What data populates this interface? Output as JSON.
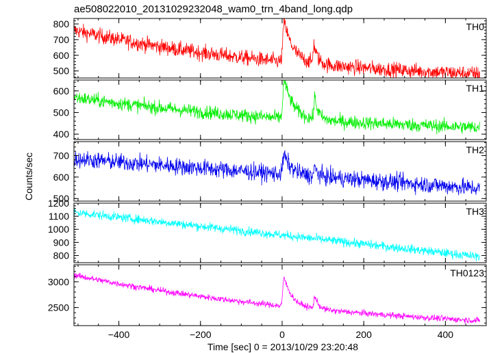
{
  "title": "ae508022010_20131029232048_wam0_trn_4band_long.qdp",
  "xlabel": "Time [sec] 0 = 2013/10/29 23:20:48",
  "ylabel": "Counts/sec",
  "chart_data": {
    "type": "line",
    "xlim": [
      -510,
      500
    ],
    "x_ticks": [
      -400,
      -200,
      0,
      200,
      400
    ],
    "x_tick_labels": [
      "−400",
      "−200",
      "0",
      "200",
      "400"
    ],
    "panels": [
      {
        "name": "TH0",
        "color": "#ff0000",
        "ylim": [
          455,
          835
        ],
        "y_ticks": [
          500,
          600,
          700,
          800
        ],
        "series": {
          "start": 760,
          "end": 480,
          "shape": "exp",
          "k": 1.8,
          "noise": 34,
          "features": [
            {
              "x": 5,
              "amp": 260,
              "rise": 3,
              "decay": 22
            },
            {
              "x": 78,
              "amp": 120,
              "rise": 2,
              "decay": 9
            }
          ]
        }
      },
      {
        "name": "TH1",
        "color": "#00ee00",
        "ylim": [
          375,
          650
        ],
        "y_ticks": [
          400,
          500,
          600
        ],
        "series": {
          "start": 570,
          "end": 430,
          "shape": "exp",
          "k": 1.5,
          "noise": 22,
          "features": [
            {
              "x": 5,
              "amp": 180,
              "rise": 3,
              "decay": 22
            },
            {
              "x": 80,
              "amp": 100,
              "rise": 2,
              "decay": 9
            }
          ]
        }
      },
      {
        "name": "TH2",
        "color": "#0000ee",
        "ylim": [
          488,
          765
        ],
        "y_ticks": [
          500,
          600,
          700
        ],
        "series": {
          "start": 685,
          "end": 545,
          "shape": "linear",
          "k": 0,
          "noise": 28,
          "features": [
            {
              "x": 5,
              "amp": 90,
              "rise": 3,
              "decay": 18
            },
            {
              "x": 80,
              "amp": 40,
              "rise": 2,
              "decay": 8
            }
          ]
        }
      },
      {
        "name": "TH3",
        "color": "#00ffff",
        "ylim": [
          745,
          1200
        ],
        "y_ticks": [
          800,
          900,
          1000,
          1100,
          1200
        ],
        "series": {
          "start": 1130,
          "end": 785,
          "shape": "linear",
          "k": 0,
          "noise": 24,
          "features": []
        }
      },
      {
        "name": "TH0123",
        "color": "#ff00ff",
        "ylim": [
          2150,
          3330
        ],
        "y_ticks": [
          2500,
          3000
        ],
        "series": {
          "start": 3130,
          "end": 2240,
          "shape": "exp",
          "k": 1.4,
          "noise": 42,
          "features": [
            {
              "x": 5,
              "amp": 560,
              "rise": 3,
              "decay": 20
            },
            {
              "x": 80,
              "amp": 250,
              "rise": 2,
              "decay": 9
            }
          ]
        }
      }
    ]
  }
}
